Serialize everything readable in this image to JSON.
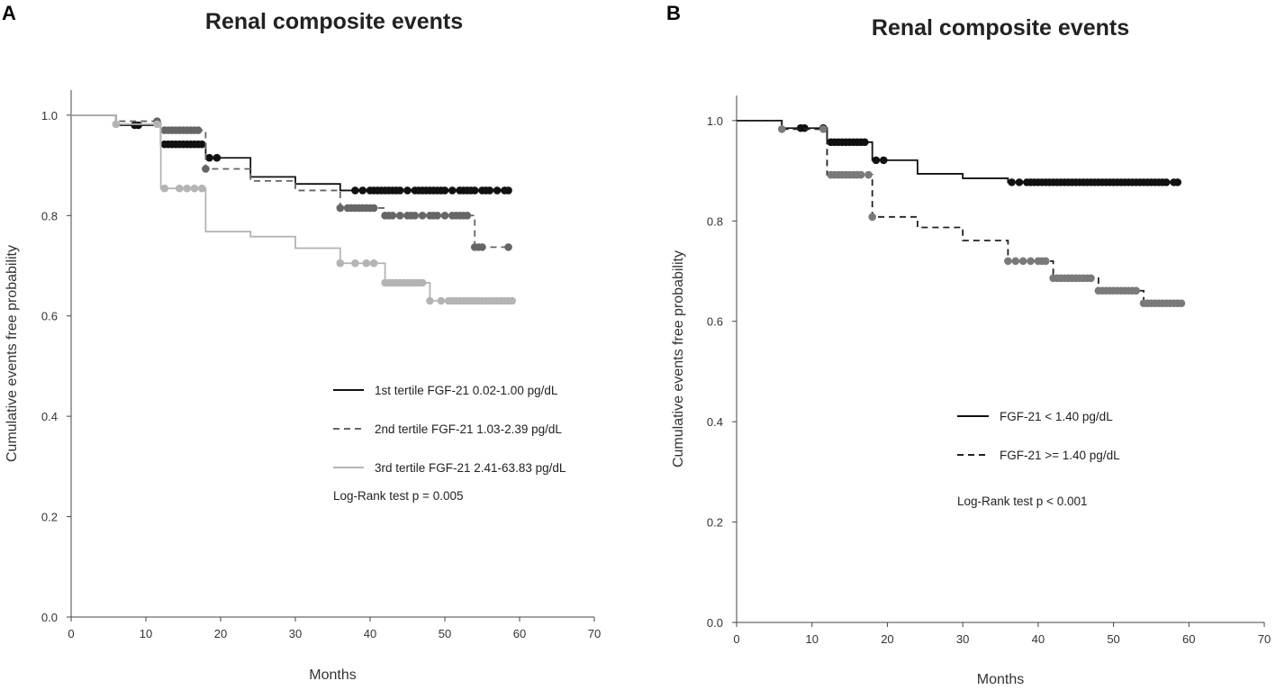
{
  "chart_data": [
    {
      "panel": "A",
      "type": "line",
      "subtype": "kaplan-meier step",
      "title": "Renal composite events",
      "xlabel": "Months",
      "ylabel": "Cumulative events free probability",
      "xlim": [
        0,
        70
      ],
      "ylim": [
        0,
        1.05
      ],
      "xticks": [
        0,
        10,
        20,
        30,
        40,
        50,
        60,
        70
      ],
      "yticks": [
        0.0,
        0.2,
        0.4,
        0.6,
        0.8,
        1.0
      ],
      "legend_position": "lower-right",
      "annotation": "Log-Rank test p = 0.005",
      "series": [
        {
          "name": "1st tertile FGF-21 0.02-1.00 pg/dL",
          "color": "#111111",
          "dash": "solid",
          "steps": [
            [
              0,
              1.0
            ],
            [
              6,
              0.98
            ],
            [
              12,
              0.942
            ],
            [
              18,
              0.915
            ],
            [
              24,
              0.877
            ],
            [
              30,
              0.863
            ],
            [
              36,
              0.85
            ],
            [
              58.5,
              0.85
            ]
          ],
          "censor_x": [
            8.5,
            9,
            12.5,
            13,
            13.5,
            14,
            14.5,
            15,
            15.5,
            16,
            16.5,
            17,
            17.5,
            18.5,
            19.5,
            38,
            39,
            40,
            40.5,
            41,
            41.5,
            42,
            42.5,
            43,
            43.5,
            44,
            45,
            46,
            46.5,
            47,
            47.5,
            48,
            48.5,
            49,
            49.5,
            50,
            51,
            52,
            52.5,
            53,
            53.5,
            54,
            55,
            55.5,
            56,
            57,
            58,
            58.5
          ]
        },
        {
          "name": "2nd tertile FGF-21 1.03-2.39 pg/dL",
          "color": "#666666",
          "dash": "dashed",
          "steps": [
            [
              0,
              1.0
            ],
            [
              6,
              0.988
            ],
            [
              12,
              0.97
            ],
            [
              18,
              0.893
            ],
            [
              24,
              0.869
            ],
            [
              30,
              0.85
            ],
            [
              36,
              0.815
            ],
            [
              42,
              0.8
            ],
            [
              54,
              0.737
            ],
            [
              58.5,
              0.737
            ]
          ],
          "censor_x": [
            11.5,
            12.5,
            13,
            13.5,
            14,
            14.5,
            15,
            15.5,
            16,
            16.5,
            17,
            18,
            36,
            37,
            37.5,
            38,
            38.5,
            39,
            39.5,
            40,
            40.5,
            42,
            42.5,
            43,
            44,
            45,
            45.5,
            46,
            47,
            48,
            48.5,
            49,
            50,
            51,
            51.5,
            52,
            52.5,
            53,
            54,
            54.5,
            55,
            58.5
          ]
        },
        {
          "name": "3rd tertile FGF-21 2.41-63.83 pg/dL",
          "color": "#b4b4b4",
          "dash": "solid",
          "steps": [
            [
              0,
              1.0
            ],
            [
              6,
              0.982
            ],
            [
              12,
              0.854
            ],
            [
              18,
              0.768
            ],
            [
              24,
              0.758
            ],
            [
              30,
              0.735
            ],
            [
              36,
              0.705
            ],
            [
              42,
              0.666
            ],
            [
              48,
              0.63
            ],
            [
              59,
              0.63
            ]
          ],
          "censor_x": [
            6,
            11.5,
            12.5,
            14.5,
            15.5,
            16.5,
            17.5,
            36,
            38,
            39.5,
            40.5,
            42,
            42.5,
            43,
            43.5,
            44,
            44.5,
            45,
            45.5,
            46,
            46.5,
            47,
            48,
            49.5,
            50.5,
            51,
            51.5,
            52,
            52.5,
            53,
            53.5,
            54,
            54.5,
            55,
            55.5,
            56,
            56.5,
            57,
            57.5,
            58,
            58.5,
            59
          ]
        }
      ]
    },
    {
      "panel": "B",
      "type": "line",
      "subtype": "kaplan-meier step",
      "title": "Renal composite events",
      "xlabel": "Months",
      "ylabel": "Cumulative events free probability",
      "xlim": [
        0,
        70
      ],
      "ylim": [
        0,
        1.05
      ],
      "xticks": [
        0,
        10,
        20,
        30,
        40,
        50,
        60,
        70
      ],
      "yticks": [
        0.0,
        0.2,
        0.4,
        0.6,
        0.8,
        1.0
      ],
      "legend_position": "lower-right",
      "annotation": "Log-Rank test p < 0.001",
      "series": [
        {
          "name": "FGF-21 < 1.40 pg/dL",
          "color": "#111111",
          "dash": "solid",
          "steps": [
            [
              0,
              1.0
            ],
            [
              6,
              0.985
            ],
            [
              12,
              0.957
            ],
            [
              18,
              0.921
            ],
            [
              24,
              0.894
            ],
            [
              30,
              0.885
            ],
            [
              36,
              0.877
            ],
            [
              58.5,
              0.877
            ]
          ],
          "censor_x": [
            8.5,
            9,
            11.5,
            12.5,
            13,
            13.5,
            14,
            14.5,
            15,
            15.5,
            16,
            16.5,
            17,
            18.5,
            19.5,
            36.5,
            37.5,
            38.5,
            39,
            39.5,
            40,
            40.5,
            41,
            41.5,
            42,
            42.5,
            43,
            43.5,
            44,
            44.5,
            45,
            45.5,
            46,
            46.5,
            47,
            47.5,
            48,
            48.5,
            49,
            49.5,
            50,
            50.5,
            51,
            51.5,
            52,
            52.5,
            53,
            53.5,
            54,
            54.5,
            55,
            55.5,
            56,
            56.5,
            57,
            58,
            58.5
          ]
        },
        {
          "name": "FGF-21 >= 1.40 pg/dL",
          "color": "#222222",
          "marker_color": "#7a7a7a",
          "dash": "dashed",
          "steps": [
            [
              0,
              1.0
            ],
            [
              6,
              0.983
            ],
            [
              12,
              0.892
            ],
            [
              18,
              0.808
            ],
            [
              24,
              0.787
            ],
            [
              30,
              0.761
            ],
            [
              36,
              0.72
            ],
            [
              42,
              0.686
            ],
            [
              48,
              0.661
            ],
            [
              54,
              0.636
            ],
            [
              59,
              0.636
            ]
          ],
          "censor_x": [
            6,
            11.5,
            12.5,
            13,
            13.5,
            14,
            14.5,
            15,
            15.5,
            16,
            16.5,
            17.5,
            18,
            36,
            37,
            38,
            39,
            40,
            40.5,
            41,
            42,
            42.5,
            43,
            43.5,
            44,
            44.5,
            45,
            45.5,
            46,
            46.5,
            47,
            48,
            48.5,
            49,
            49.5,
            50,
            50.5,
            51,
            51.5,
            52,
            52.5,
            53,
            54,
            54.5,
            55,
            55.5,
            56,
            56.5,
            57,
            57.5,
            58,
            58.5,
            59
          ]
        }
      ]
    }
  ]
}
